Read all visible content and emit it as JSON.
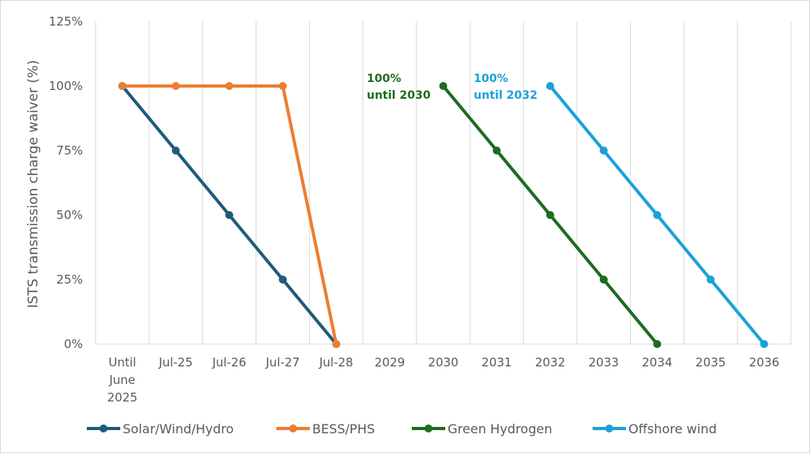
{
  "chart_data": {
    "type": "line",
    "title": "",
    "xlabel": "",
    "ylabel": "ISTS transmission charge waiver (%)",
    "categories": [
      [
        "Until",
        "June",
        "2025"
      ],
      [
        "Jul-25"
      ],
      [
        "Jul-26"
      ],
      [
        "Jul-27"
      ],
      [
        "Jul-28"
      ],
      [
        "2029"
      ],
      [
        "2030"
      ],
      [
        "2031"
      ],
      [
        "2032"
      ],
      [
        "2033"
      ],
      [
        "2034"
      ],
      [
        "2035"
      ],
      [
        "2036"
      ]
    ],
    "ylim": [
      0,
      125
    ],
    "yticks": [
      0,
      25,
      50,
      75,
      100,
      125
    ],
    "ytick_labels": [
      "0%",
      "25%",
      "50%",
      "75%",
      "100%",
      "125%"
    ],
    "grid": "vertical",
    "legend_position": "bottom",
    "series": [
      {
        "name": "Solar/Wind/Hydro",
        "color": "#1f5b7a",
        "points": [
          [
            0,
            100
          ],
          [
            1,
            75
          ],
          [
            2,
            50
          ],
          [
            3,
            25
          ],
          [
            4,
            0
          ]
        ]
      },
      {
        "name": "BESS/PHS",
        "color": "#ed7d31",
        "points": [
          [
            0,
            100
          ],
          [
            1,
            100
          ],
          [
            2,
            100
          ],
          [
            3,
            100
          ],
          [
            4,
            0
          ]
        ]
      },
      {
        "name": "Green Hydrogen",
        "color": "#1e6b22",
        "points": [
          [
            6,
            100
          ],
          [
            7,
            75
          ],
          [
            8,
            50
          ],
          [
            9,
            25
          ],
          [
            10,
            0
          ]
        ]
      },
      {
        "name": "Offshore wind",
        "color": "#1ba1d9",
        "points": [
          [
            8,
            100
          ],
          [
            9,
            75
          ],
          [
            10,
            50
          ],
          [
            11,
            25
          ],
          [
            12,
            0
          ]
        ]
      }
    ],
    "annotations": [
      {
        "lines": [
          "100%",
          "until 2030"
        ],
        "color": "#1e6b22",
        "x": 6,
        "y": 100
      },
      {
        "lines": [
          "100%",
          "until 2032"
        ],
        "color": "#1ba1d9",
        "x": 8,
        "y": 100
      }
    ]
  }
}
